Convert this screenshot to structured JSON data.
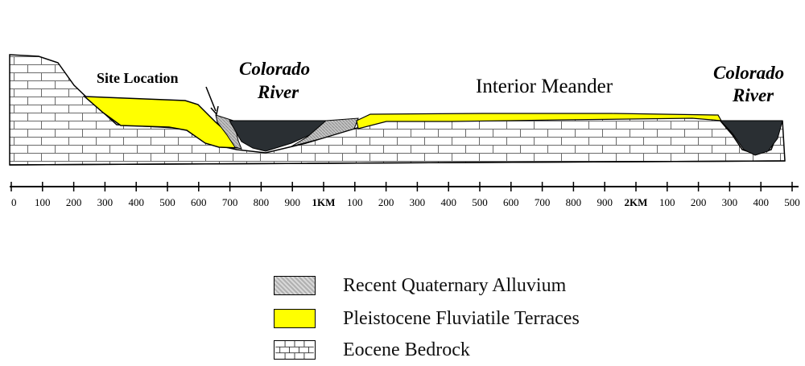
{
  "labels": {
    "site_location": "Site Location",
    "river_left_line1": "Colorado",
    "river_left_line2": "River",
    "interior_meander": "Interior Meander",
    "river_right_line1": "Colorado",
    "river_right_line2": "River"
  },
  "scale": {
    "ticks": [
      "0",
      "100",
      "200",
      "300",
      "400",
      "500",
      "600",
      "700",
      "800",
      "900",
      "1KM",
      "100",
      "200",
      "300",
      "400",
      "500",
      "600",
      "700",
      "800",
      "900",
      "2KM",
      "100",
      "200",
      "300",
      "400",
      "500"
    ]
  },
  "legend": [
    {
      "label": "Recent Quaternary Alluvium",
      "pattern": "alluvium",
      "color": "#b8b8b8"
    },
    {
      "label": "Pleistocene Fluviatile Terraces",
      "pattern": "terrace",
      "color": "#ffff00"
    },
    {
      "label": "Eocene Bedrock",
      "pattern": "bedrock",
      "color": "#ffffff"
    }
  ],
  "colors": {
    "terrace": "#ffff00",
    "alluvium": "#b8b8b8",
    "river": "#2a2f33",
    "bedrock_line": "#555555"
  }
}
